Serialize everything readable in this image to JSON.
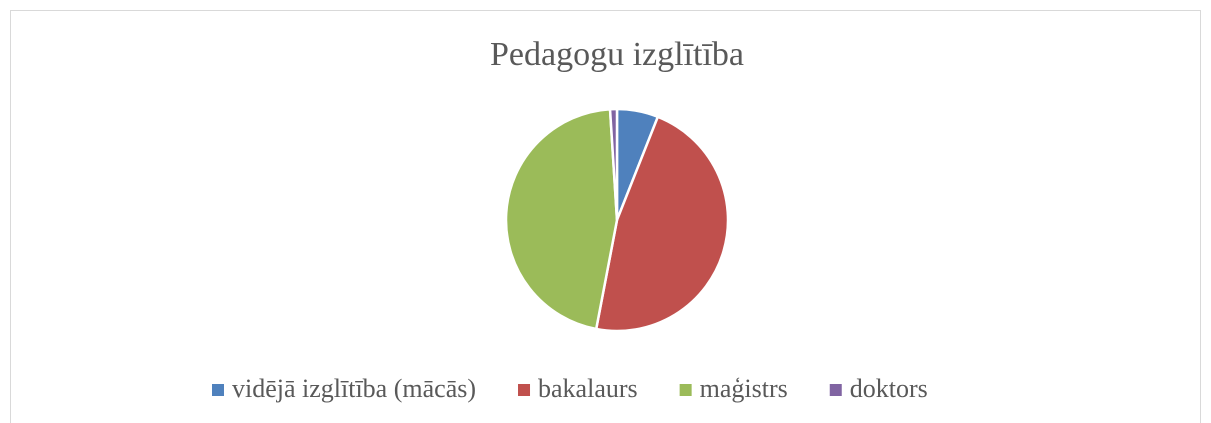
{
  "chart_data": {
    "type": "pie",
    "title": "Pedagogu izglītība",
    "categories": [
      "vidējā izglītība (mācās)",
      "bakalaurs",
      "maģistrs",
      "doktors"
    ],
    "values": [
      6,
      47,
      46,
      1
    ],
    "colors": [
      "#4f81bd",
      "#c0504d",
      "#9bbb59",
      "#8064a2"
    ],
    "legend": "bottom"
  }
}
